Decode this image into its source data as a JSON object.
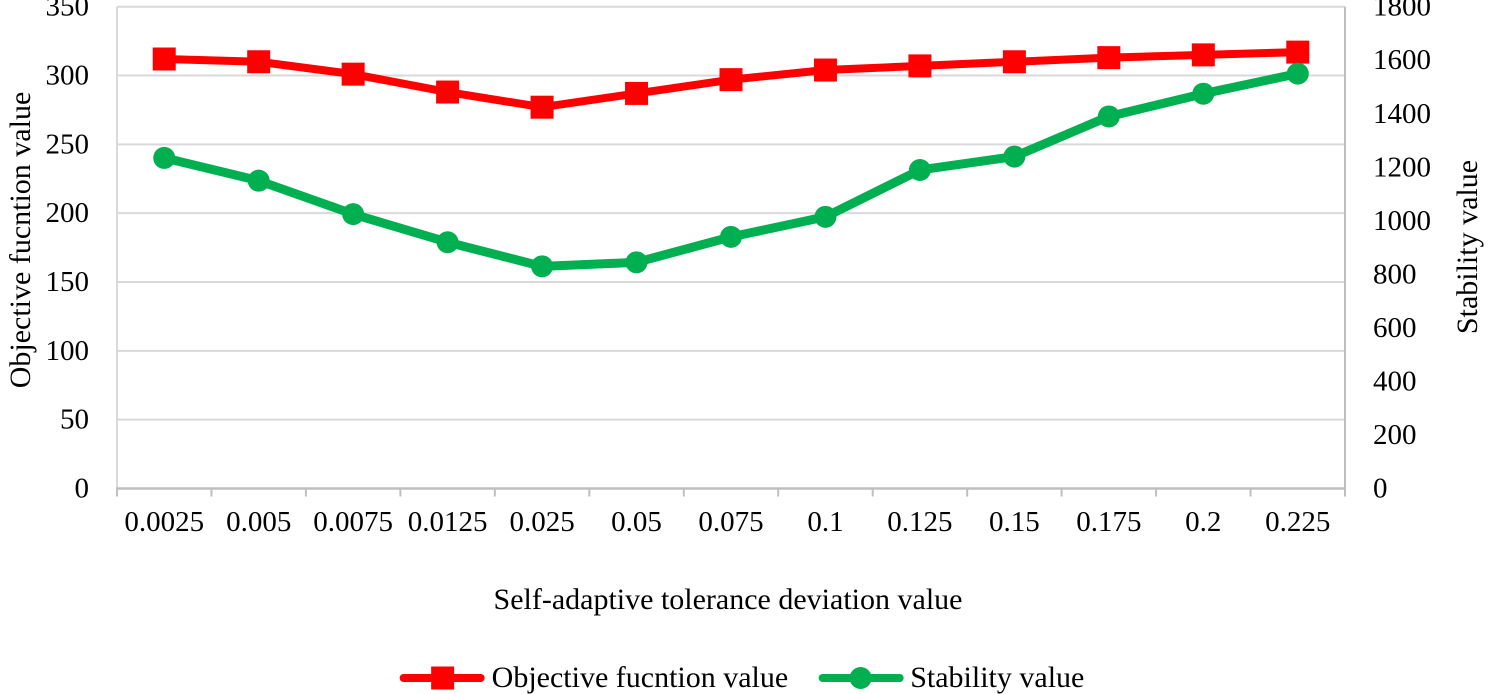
{
  "chart_data": {
    "type": "line",
    "title": "",
    "categories": [
      "0.0025",
      "0.005",
      "0.0075",
      "0.0125",
      "0.025",
      "0.05",
      "0.075",
      "0.1",
      "0.125",
      "0.15",
      "0.175",
      "0.2",
      "0.225"
    ],
    "xlabel": "Self-adaptive tolerance deviation value",
    "grid": true,
    "legend_position": "bottom",
    "y_left": {
      "title": "Objective fucntion value",
      "min": 0,
      "max": 350,
      "step": 50,
      "ticks": [
        "0",
        "50",
        "100",
        "150",
        "200",
        "250",
        "300",
        "350"
      ]
    },
    "y_right": {
      "title": "Stability value",
      "min": 0,
      "max": 1800,
      "step": 200,
      "ticks": [
        "0",
        "200",
        "400",
        "600",
        "800",
        "1000",
        "1200",
        "1400",
        "1600",
        "1800"
      ]
    },
    "series": [
      {
        "name": "Objective fucntion value",
        "axis": "left",
        "color": "#FF0000",
        "marker": "square",
        "values": [
          312,
          310,
          301,
          288,
          277,
          287,
          297,
          304,
          307,
          310,
          313,
          315,
          317
        ]
      },
      {
        "name": "Stability value",
        "axis": "right",
        "color": "#00B050",
        "marker": "circle",
        "values": [
          1235,
          1150,
          1025,
          920,
          830,
          845,
          940,
          1015,
          1190,
          1240,
          1390,
          1475,
          1550
        ]
      }
    ]
  },
  "colors": {
    "gridline": "#D9D9D9",
    "axis_line": "#BFBFBF",
    "text": "#000000"
  }
}
